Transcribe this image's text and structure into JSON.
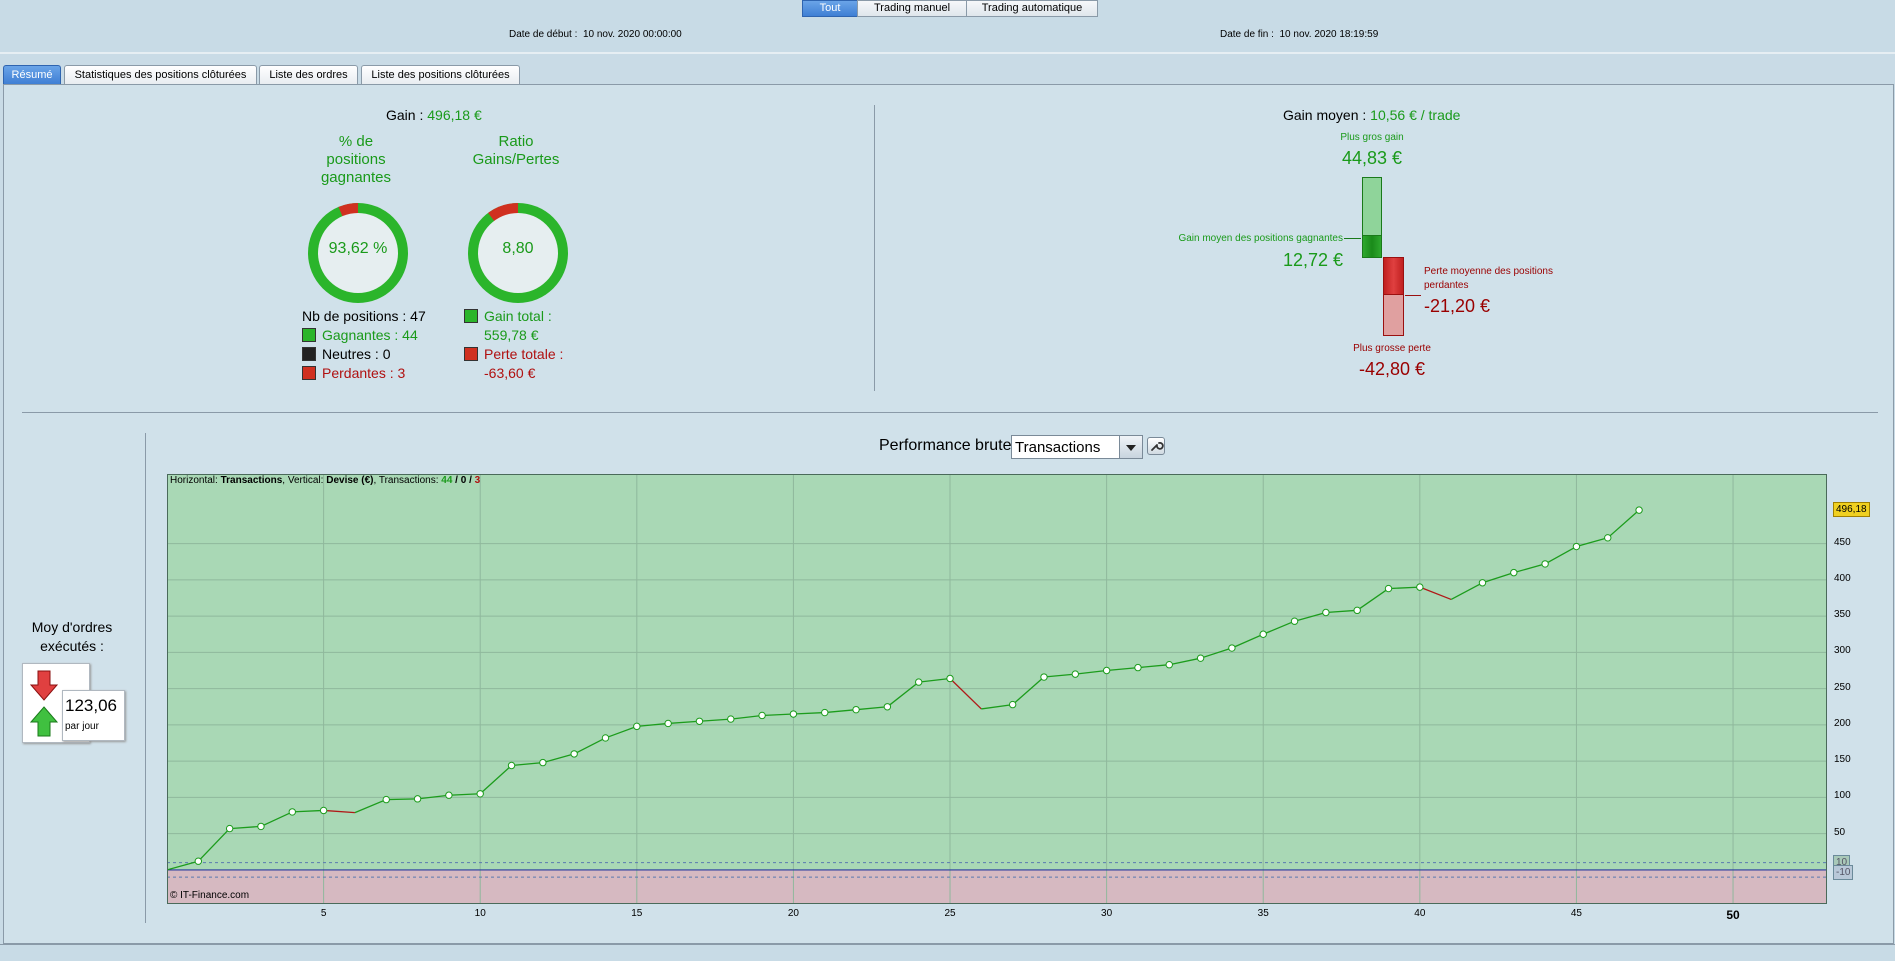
{
  "top_tabs": [
    "Tout",
    "Trading manuel",
    "Trading automatique"
  ],
  "date_start_label": "Date de début :",
  "date_start_value": "10 nov. 2020 00:00:00",
  "date_end_label": "Date de fin :",
  "date_end_value": "10 nov. 2020 18:19:59",
  "sub_tabs": [
    "Résumé",
    "Statistiques des positions clôturées",
    "Liste des ordres",
    "Liste des positions clôturées"
  ],
  "summary": {
    "gain_label": "Gain :",
    "gain_value": "496,18 €",
    "pct_winning_title_l1": "% de",
    "pct_winning_title_l2": "positions",
    "pct_winning_title_l3": "gagnantes",
    "pct_winning_value": "93,62 %",
    "pct_winning_fraction": 0.9362,
    "ratio_title_l1": "Ratio",
    "ratio_title_l2": "Gains/Pertes",
    "ratio_value": "8,80",
    "ratio_fraction": 0.898,
    "nb_positions": "Nb de positions : 47",
    "gagnantes": "Gagnantes : 44",
    "neutres": "Neutres : 0",
    "perdantes": "Perdantes : 3",
    "gain_total_label": "Gain total :",
    "gain_total_value": "559,78 €",
    "perte_totale_label": "Perte totale :",
    "perte_totale_value": "-63,60 €"
  },
  "gain_moyen": {
    "label": "Gain moyen :",
    "value": "10,56 € / trade",
    "plus_gros_gain_label": "Plus gros gain",
    "plus_gros_gain_value": "44,83 €",
    "gain_moyen_gagnantes_label": "Gain moyen des positions gagnantes",
    "gain_moyen_gagnantes_value": "12,72 €",
    "perte_moyenne_label_l1": "Perte moyenne des positions",
    "perte_moyenne_label_l2": "perdantes",
    "perte_moyenne_value": "-21,20 €",
    "plus_grosse_perte_label": "Plus grosse perte",
    "plus_grosse_perte_value": "-42,80 €"
  },
  "orders": {
    "title_l1": "Moy d'ordres",
    "title_l2": "exécutés :",
    "value": "123,06",
    "unit": "par jour"
  },
  "perf": {
    "label": "Performance brute",
    "select_value": "Transactions",
    "info_h_label": "Horizontal:",
    "info_h_value": "Transactions",
    "info_v_label": ", Vertical:",
    "info_v_value": "Devise (€)",
    "info_t_label": ", Transactions:",
    "info_win": "44",
    "info_sep1": " / ",
    "info_neutral": "0",
    "info_sep2": " / ",
    "info_loss": "3",
    "copyright": "© IT-Finance.com",
    "last_value_tag": "496,18",
    "ref_tag_top": "10",
    "ref_tag_bottom": "-10"
  },
  "chart_data": {
    "type": "line",
    "x_ticks": [
      "5",
      "10",
      "15",
      "20",
      "25",
      "30",
      "35",
      "40",
      "45",
      "50"
    ],
    "y_ticks": [
      "50",
      "100",
      "150",
      "200",
      "250",
      "300",
      "350",
      "400",
      "450"
    ],
    "xlim": [
      0,
      53
    ],
    "ylim": [
      -47,
      546
    ],
    "x": [
      0,
      1,
      2,
      3,
      4,
      5,
      6,
      7,
      8,
      9,
      10,
      11,
      12,
      13,
      14,
      15,
      16,
      17,
      18,
      19,
      20,
      21,
      22,
      23,
      24,
      25,
      26,
      27,
      28,
      29,
      30,
      31,
      32,
      33,
      34,
      35,
      36,
      37,
      38,
      39,
      40,
      41,
      42,
      43,
      44,
      45,
      46,
      47
    ],
    "values": [
      0,
      12,
      57,
      60,
      80,
      82,
      79,
      97,
      98,
      103,
      105,
      144,
      148,
      160,
      182,
      198,
      202,
      205,
      208,
      213,
      215,
      217,
      221,
      225,
      259,
      264,
      222,
      228,
      266,
      270,
      275,
      279,
      283,
      292,
      306,
      325,
      343,
      355,
      358,
      388,
      390,
      373,
      396,
      410,
      422,
      446,
      458,
      496.18
    ],
    "ref_lines": [
      10,
      -10
    ],
    "grid": true
  },
  "colors": {
    "gain_green": "#1a9a1a",
    "loss_red": "#b01010",
    "chart_bg_green": "#a8d8b4",
    "chart_bg_red": "#d8b8c0",
    "line_green": "#1c9c1c",
    "line_red": "#b01818",
    "accent_blue": "#3f7fd4"
  }
}
